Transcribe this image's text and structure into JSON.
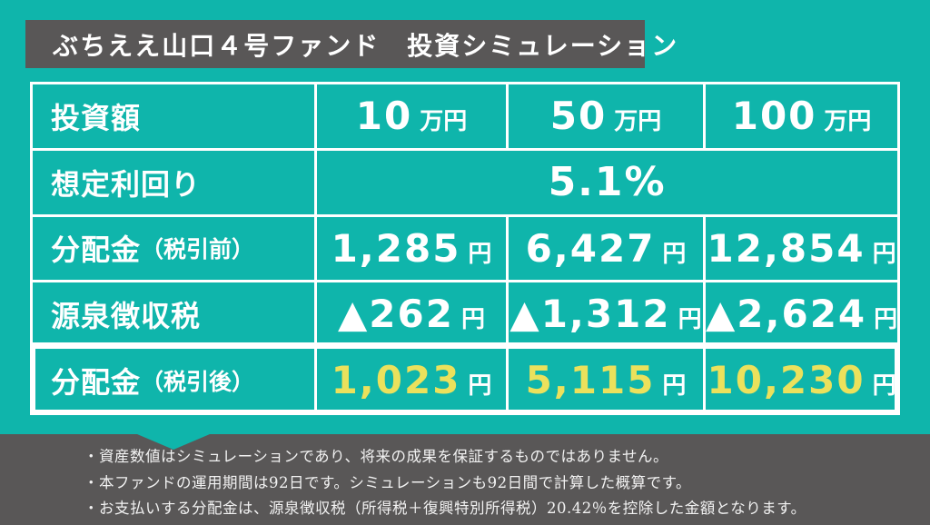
{
  "colors": {
    "background_teal": "#0fb5ab",
    "band_gray": "#595757",
    "highlight_yellow": "#ebe15c",
    "border_white": "#ffffff"
  },
  "title": {
    "text": "ぶちええ山口４号ファンド　投資シミュレーション"
  },
  "table": {
    "rows": [
      {
        "label_main": "投資額",
        "label_sub": "",
        "cells": [
          {
            "value": "10",
            "unit": "万円"
          },
          {
            "value": "50",
            "unit": "万円"
          },
          {
            "value": "100",
            "unit": "万円"
          }
        ]
      },
      {
        "label_main": "想定利回り",
        "label_sub": "",
        "merged_value": "5.1%"
      },
      {
        "label_main": "分配金",
        "label_sub": "（税引前）",
        "cells": [
          {
            "value": "1,285",
            "unit": "円"
          },
          {
            "value": "6,427",
            "unit": "円"
          },
          {
            "value": "12,854",
            "unit": "円"
          }
        ]
      },
      {
        "label_main": "源泉徴収税",
        "label_sub": "",
        "cells": [
          {
            "value": "▲262",
            "unit": "円"
          },
          {
            "value": "▲1,312",
            "unit": "円"
          },
          {
            "value": "▲2,624",
            "unit": "円"
          }
        ]
      },
      {
        "label_main": "分配金",
        "label_sub": "（税引後）",
        "highlight": true,
        "cells": [
          {
            "value": "1,023",
            "unit": "円"
          },
          {
            "value": "5,115",
            "unit": "円"
          },
          {
            "value": "10,230",
            "unit": "円"
          }
        ]
      }
    ]
  },
  "footer": {
    "notes": [
      "・資産数値はシミュレーションであり、将来の成果を保証するものではありません。",
      "・本ファンドの運用期間は92日です。シミュレーションも92日間で計算した概算です。",
      "・お支払いする分配金は、源泉徴収税（所得税＋復興特別所得税）20.42％を控除した金額となります。"
    ]
  },
  "chart_data": {
    "type": "table",
    "title": "ぶちええ山口４号ファンド　投資シミュレーション",
    "columns": [
      "投資額",
      "10万円",
      "50万円",
      "100万円"
    ],
    "rows": [
      [
        "想定利回り",
        "5.1%",
        "5.1%",
        "5.1%"
      ],
      [
        "分配金（税引前）",
        "1,285円",
        "6,427円",
        "12,854円"
      ],
      [
        "源泉徴収税",
        "▲262円",
        "▲1,312円",
        "▲2,624円"
      ],
      [
        "分配金（税引後）",
        "1,023円",
        "5,115円",
        "10,230円"
      ]
    ],
    "notes": [
      "資産数値はシミュレーションであり、将来の成果を保証するものではありません。",
      "本ファンドの運用期間は92日です。シミュレーションも92日間で計算した概算です。",
      "お支払いする分配金は、源泉徴収税（所得税＋復興特別所得税）20.42％を控除した金額となります。"
    ]
  }
}
